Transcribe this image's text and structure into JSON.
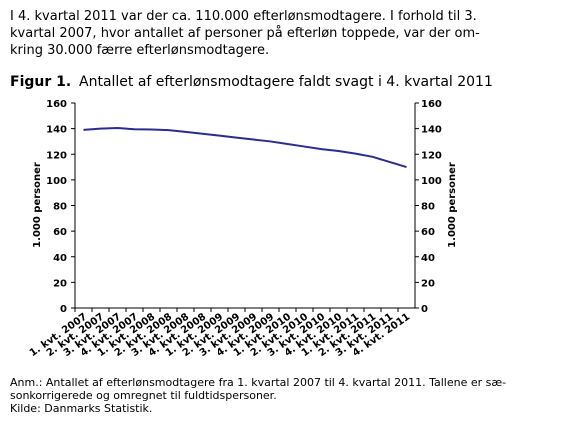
{
  "intro_lines": [
    "I 4. kvartal 2011 var der ca. 110.000 efterlønsmodtagere. I forhold til 3.",
    "kvartal 2007, hvor antallet af personer på efterløn toppede, var der om-",
    "kring 30.000 færre efterlønsmodtagere."
  ],
  "chart_data": {
    "type": "line",
    "figure_label": "Figur 1.",
    "title": "Antallet af efterlønsmodtagere faldt svagt i 4. kvartal 2011",
    "y_label": "1.000 personer",
    "y2_label": "1.000 personer",
    "categories": [
      "1. kvt. 2007",
      "2. kvt. 2007",
      "3. kvt. 2007",
      "4. kvt. 2007",
      "1. kvt. 2008",
      "2. kvt. 2008",
      "3. kvt. 2008",
      "4. kvt. 2008",
      "1. kvt. 2009",
      "2. kvt. 2009",
      "3. kvt. 2009",
      "4. kvt. 2009",
      "1. kvt. 2010",
      "2. kvt. 2010",
      "3. kvt. 2010",
      "4. kvt. 2010",
      "1. kvt. 2011",
      "2. kvt. 2011",
      "3. kvt. 2011",
      "4. kvt. 2011"
    ],
    "series": [
      {
        "color": "#2b2d8e",
        "values": [
          139,
          140,
          140.5,
          139.5,
          139.3,
          138.8,
          137.5,
          136,
          134.5,
          133,
          131.5,
          130,
          128,
          126,
          124,
          122.5,
          120.5,
          118,
          114,
          110
        ]
      }
    ],
    "ylim": [
      0,
      160
    ],
    "yticks": [
      0,
      20,
      40,
      60,
      80,
      100,
      120,
      140,
      160
    ],
    "y2lim": [
      0,
      160
    ],
    "y2ticks": [
      0,
      20,
      40,
      60,
      80,
      100,
      120,
      140,
      160
    ]
  },
  "note_lines": [
    "Anm.: Antallet af efterlønsmodtagere fra 1. kvartal 2007 til 4. kvartal 2011. Tallene er sæ-",
    "sonkorrigerede og omregnet til fuldtidspersoner."
  ],
  "source": "Kilde: Danmarks Statistik."
}
